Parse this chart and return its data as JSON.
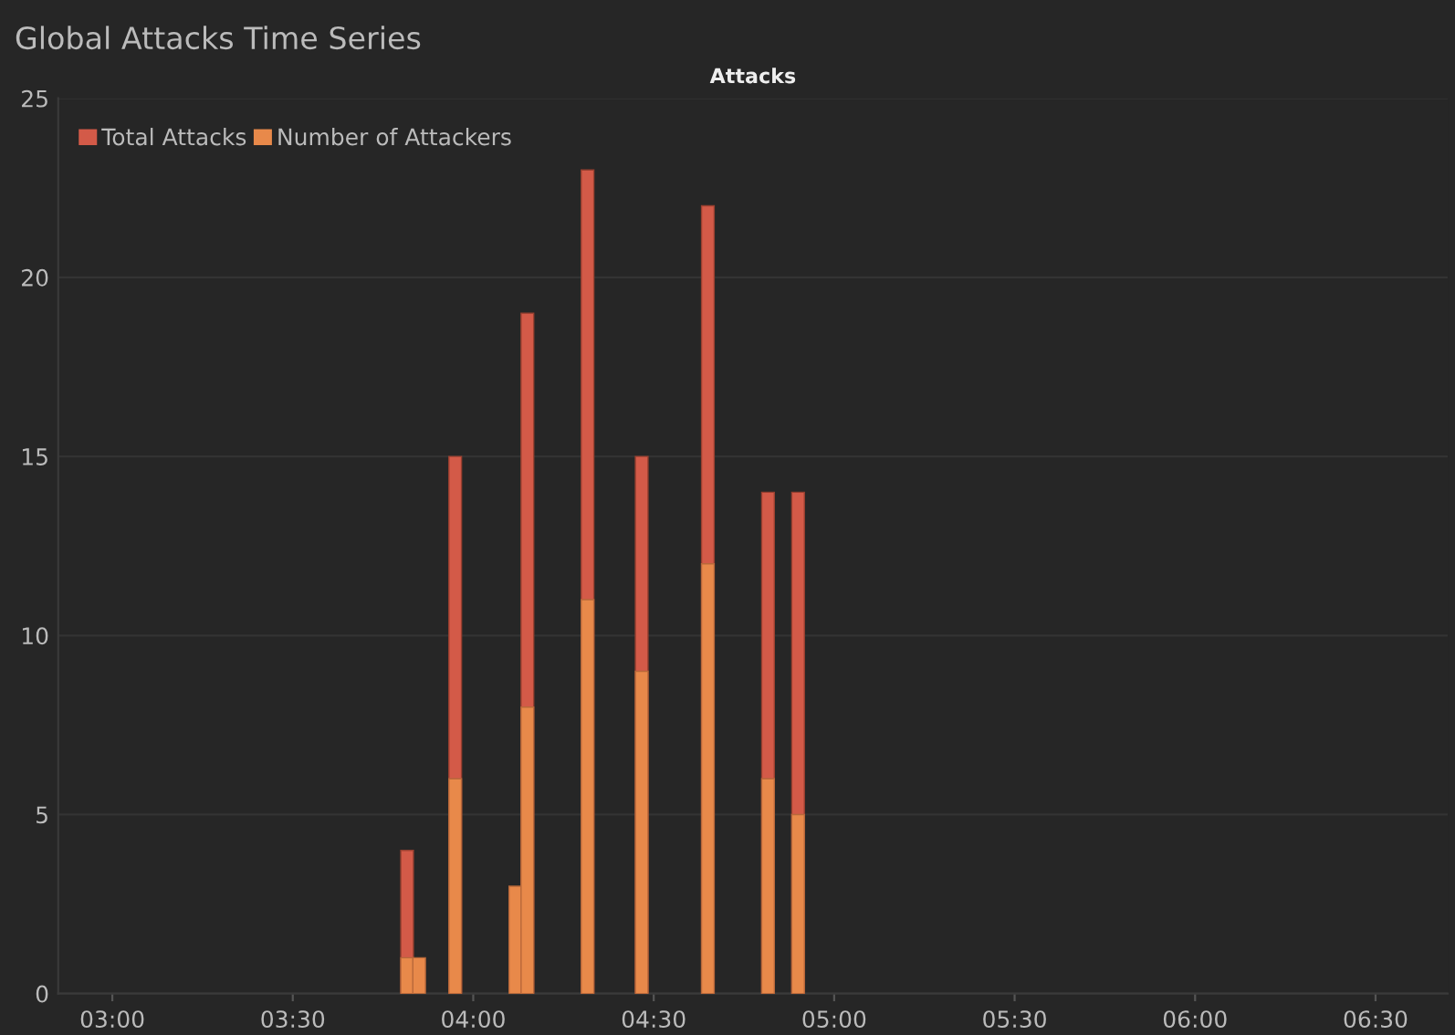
{
  "chart_data": {
    "type": "bar",
    "title": "Global Attacks Time Series",
    "subtitle": "Attacks",
    "series": [
      {
        "name": "Total Attacks",
        "color": "#d35a48",
        "x": [
          3.8167,
          3.95,
          4.15,
          4.3167,
          4.4667,
          4.65,
          4.8167,
          4.9
        ],
        "values": [
          4,
          15,
          19,
          23,
          15,
          22,
          14,
          14
        ]
      },
      {
        "name": "Number of Attackers",
        "color": "#e8894a",
        "x": [
          3.8167,
          3.85,
          3.95,
          4.1167,
          4.15,
          4.3167,
          4.4667,
          4.65,
          4.8167,
          4.9
        ],
        "values": [
          1,
          1,
          6,
          3,
          8,
          11,
          9,
          12,
          6,
          5
        ]
      }
    ],
    "xlim": [
      2.85,
      6.7
    ],
    "xticks": [
      {
        "value": 3.0,
        "label": "03:00"
      },
      {
        "value": 3.5,
        "label": "03:30"
      },
      {
        "value": 4.0,
        "label": "04:00"
      },
      {
        "value": 4.5,
        "label": "04:30"
      },
      {
        "value": 5.0,
        "label": "05:00"
      },
      {
        "value": 5.5,
        "label": "05:30"
      },
      {
        "value": 6.0,
        "label": "06:00"
      },
      {
        "value": 6.5,
        "label": "06:30"
      }
    ],
    "ylim": [
      0,
      25
    ],
    "yticks": [
      0,
      5,
      10,
      15,
      20,
      25
    ],
    "grid": "y",
    "legend": "top left"
  }
}
